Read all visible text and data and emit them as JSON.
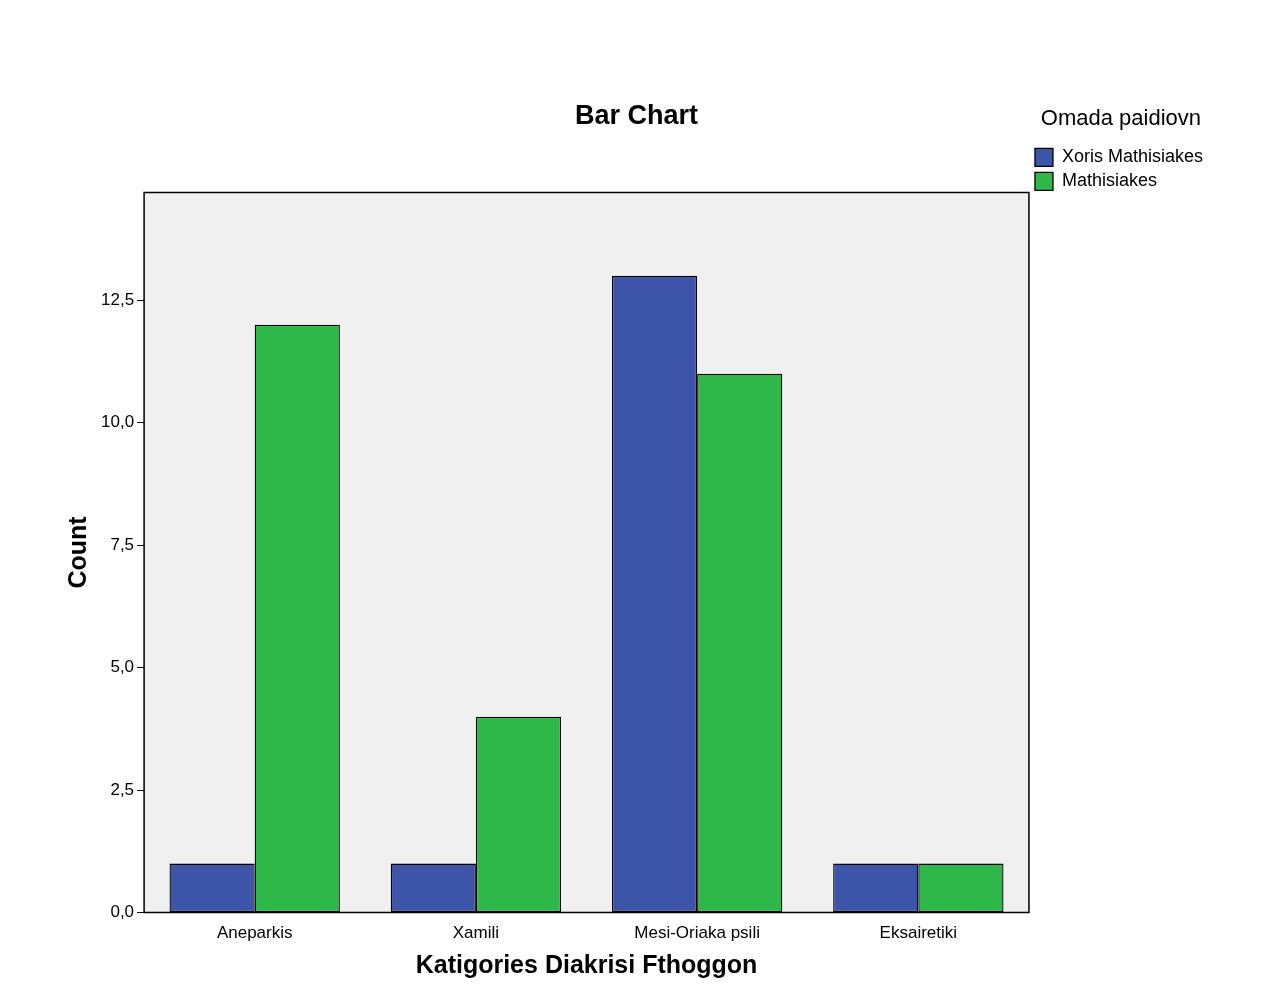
{
  "chart_data": {
    "type": "bar",
    "title": "Bar Chart",
    "xlabel": "Katigories Diakrisi Fthoggon",
    "ylabel": "Count",
    "legend_title": "Omada paidiovn",
    "categories": [
      "Aneparkis",
      "Xamili",
      "Mesi-Oriaka psili",
      "Eksairetiki"
    ],
    "series": [
      {
        "name": "Xoris Mathisiakes",
        "color": "#3d55a8",
        "values": [
          1,
          1,
          13,
          1
        ]
      },
      {
        "name": "Mathisiakes",
        "color": "#2eb84a",
        "values": [
          12,
          4,
          11,
          1
        ]
      }
    ],
    "ylim": [
      0,
      14.7
    ],
    "yticks": [
      {
        "value": 0,
        "label": "0,0"
      },
      {
        "value": 2.5,
        "label": "2,5"
      },
      {
        "value": 5,
        "label": "5,0"
      },
      {
        "value": 7.5,
        "label": "7,5"
      },
      {
        "value": 10,
        "label": "10,0"
      },
      {
        "value": 12.5,
        "label": "12,5"
      }
    ],
    "grid": false,
    "legend": "top right"
  }
}
